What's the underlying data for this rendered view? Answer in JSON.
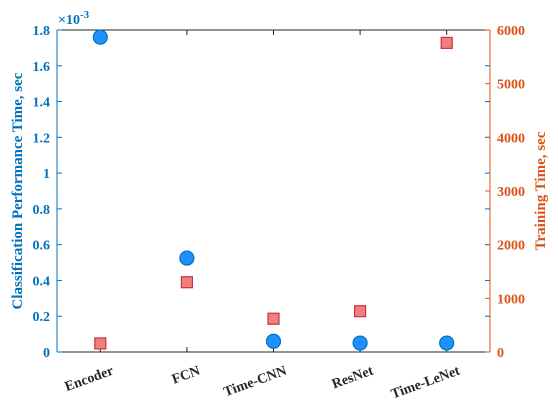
{
  "chart_data": {
    "type": "scatter",
    "categories": [
      "Encoder",
      "FCN",
      "Time-CNN",
      "ResNet",
      "Time-LeNet"
    ],
    "left_axis": {
      "label": "Classification Performance Time, sec",
      "exponent_label": "×10",
      "exponent_power": "-3",
      "ylim": [
        0,
        1.8
      ],
      "ticks": [
        0,
        0.2,
        0.4,
        0.6,
        0.8,
        1,
        1.2,
        1.4,
        1.6,
        1.8
      ],
      "tick_labels": [
        "0",
        "0.2",
        "0.4",
        "0.6",
        "0.8",
        "1",
        "1.2",
        "1.4",
        "1.6",
        "1.8"
      ],
      "color": "#0072BD"
    },
    "right_axis": {
      "label": "Training Time, sec",
      "ylim": [
        0,
        6000
      ],
      "ticks": [
        0,
        1000,
        2000,
        3000,
        4000,
        5000,
        6000
      ],
      "tick_labels": [
        "0",
        "1000",
        "2000",
        "3000",
        "4000",
        "5000",
        "6000"
      ],
      "color": "#D95319"
    },
    "series": [
      {
        "axis": "left",
        "marker": "circle",
        "color": "#0072BD",
        "fill": "#1E90FF",
        "values": [
          1.76,
          0.525,
          0.06,
          0.05,
          0.05
        ]
      },
      {
        "axis": "right",
        "marker": "square",
        "color": "#C8323C",
        "fill": "#F08080",
        "values": [
          160,
          1300,
          620,
          760,
          5760
        ]
      }
    ],
    "grid": false,
    "legend": "none"
  }
}
